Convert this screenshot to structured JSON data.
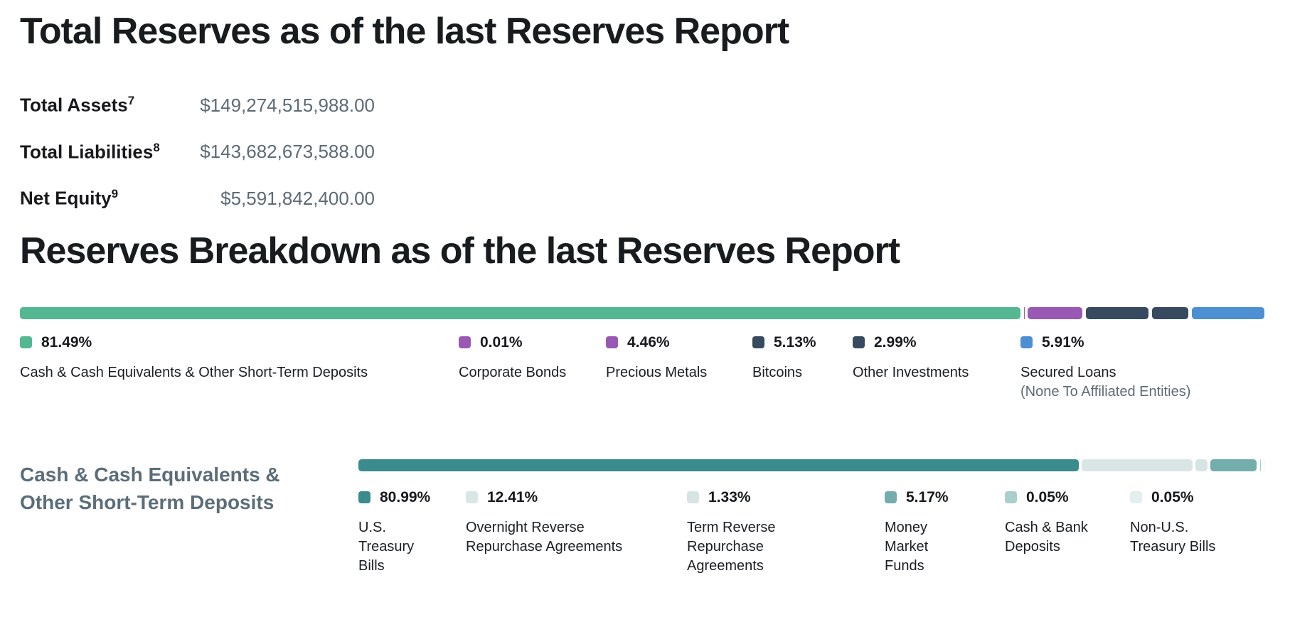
{
  "page": {
    "total_section": {
      "title": "Total Reserves as of the last Reserves Report",
      "stats": [
        {
          "label": "Total Assets",
          "footnote": "7",
          "value": "$149,274,515,988.00"
        },
        {
          "label": "Total Liabilities",
          "footnote": "8",
          "value": "$143,682,673,588.00"
        },
        {
          "label": "Net Equity",
          "footnote": "9",
          "value": "$5,591,842,400.00"
        }
      ]
    },
    "breakdown_section": {
      "title": "Reserves Breakdown as of the last Reserves Report"
    },
    "cash_section": {
      "title": "Cash & Cash Equivalents &\nOther Short-Term Deposits"
    }
  },
  "colors": {
    "green": "#54B893",
    "purple": "#9A58B5",
    "navy": "#374A5F",
    "blue": "#4C90D3",
    "teal_dark": "#3A8B8D",
    "teal_light": "#D9E6E5",
    "teal_lighter": "#D6E5E4",
    "teal_medium": "#73AEAD",
    "teal_soft": "#A9CECC",
    "teal_faint": "#E3EFEE",
    "text_dark": "#17191C",
    "text_slate": "#5D6B77"
  },
  "chart_data": [
    {
      "type": "bar",
      "variant": "stacked-horizontal",
      "title": "Reserves Breakdown as of the last Reserves Report",
      "unit": "%",
      "total": 100,
      "segments": [
        {
          "label": "Cash & Cash Equivalents & Other Short-Term Deposits",
          "value": 81.49,
          "pct_label": "81.49%",
          "color": "#54B893"
        },
        {
          "label": "Corporate Bonds",
          "value": 0.01,
          "pct_label": "0.01%",
          "color": "#9A58B5"
        },
        {
          "label": "Precious Metals",
          "value": 4.46,
          "pct_label": "4.46%",
          "color": "#9A58B5"
        },
        {
          "label": "Bitcoins",
          "value": 5.13,
          "pct_label": "5.13%",
          "color": "#374A5F"
        },
        {
          "label": "Other Investments",
          "value": 2.99,
          "pct_label": "2.99%",
          "color": "#374A5F"
        },
        {
          "label": "Secured Loans",
          "sub_label": "(None To Affiliated Entities)",
          "value": 5.91,
          "pct_label": "5.91%",
          "color": "#4C90D3"
        }
      ]
    },
    {
      "type": "bar",
      "variant": "stacked-horizontal",
      "title": "Cash & Cash Equivalents & Other Short-Term Deposits",
      "unit": "%",
      "total": 100,
      "segments": [
        {
          "label": "U.S.\nTreasury\nBills",
          "value": 80.99,
          "pct_label": "80.99%",
          "color": "#3A8B8D"
        },
        {
          "label": "Overnight Reverse\nRepurchase Agreements",
          "value": 12.41,
          "pct_label": "12.41%",
          "color": "#D9E6E5"
        },
        {
          "label": "Term Reverse\nRepurchase\nAgreements",
          "value": 1.33,
          "pct_label": "1.33%",
          "color": "#D6E5E4"
        },
        {
          "label": "Money\nMarket\nFunds",
          "value": 5.17,
          "pct_label": "5.17%",
          "color": "#73AEAD"
        },
        {
          "label": "Cash & Bank\nDeposits",
          "value": 0.05,
          "pct_label": "0.05%",
          "color": "#A9CECC"
        },
        {
          "label": "Non-U.S.\nTreasury Bills",
          "value": 0.05,
          "pct_label": "0.05%",
          "color": "#E3EFEE"
        }
      ]
    }
  ]
}
